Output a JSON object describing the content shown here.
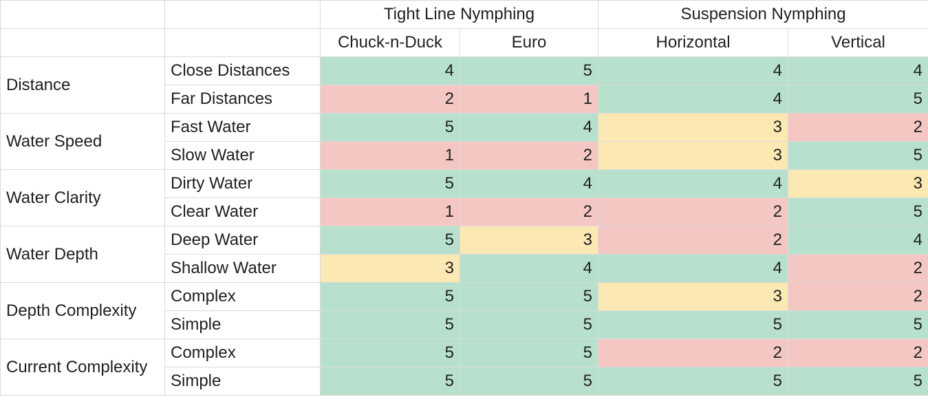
{
  "header": {
    "groups": [
      {
        "label": "Tight Line Nymphing",
        "span": 2
      },
      {
        "label": "Suspension Nymphing",
        "span": 2
      }
    ],
    "methods": [
      "Chuck-n-Duck",
      "Euro",
      "Horizontal",
      "Vertical"
    ]
  },
  "colors": {
    "high": "#b7e1cd",
    "mid": "#fce8b2",
    "low": "#f4c7c3",
    "grid": "#dadada"
  },
  "rows": [
    {
      "group": "Distance",
      "metric": "Close Distances",
      "values": [
        4,
        5,
        4,
        4
      ],
      "shades": [
        "g",
        "g",
        "g",
        "g"
      ]
    },
    {
      "group": "Distance",
      "metric": "Far Distances",
      "values": [
        2,
        1,
        4,
        5
      ],
      "shades": [
        "r",
        "r",
        "g",
        "g"
      ]
    },
    {
      "group": "Water Speed",
      "metric": "Fast Water",
      "values": [
        5,
        4,
        3,
        2
      ],
      "shades": [
        "g",
        "g",
        "y",
        "r"
      ]
    },
    {
      "group": "Water Speed",
      "metric": "Slow Water",
      "values": [
        1,
        2,
        3,
        5
      ],
      "shades": [
        "r",
        "r",
        "y",
        "g"
      ]
    },
    {
      "group": "Water Clarity",
      "metric": "Dirty Water",
      "values": [
        5,
        4,
        4,
        3
      ],
      "shades": [
        "g",
        "g",
        "g",
        "y"
      ]
    },
    {
      "group": "Water Clarity",
      "metric": "Clear Water",
      "values": [
        1,
        2,
        2,
        5
      ],
      "shades": [
        "r",
        "r",
        "r",
        "g"
      ]
    },
    {
      "group": "Water Depth",
      "metric": "Deep Water",
      "values": [
        5,
        3,
        2,
        4
      ],
      "shades": [
        "g",
        "y",
        "r",
        "g"
      ]
    },
    {
      "group": "Water Depth",
      "metric": "Shallow Water",
      "values": [
        3,
        4,
        4,
        2
      ],
      "shades": [
        "y",
        "g",
        "g",
        "r"
      ]
    },
    {
      "group": "Depth Complexity",
      "metric": "Complex",
      "values": [
        5,
        5,
        3,
        2
      ],
      "shades": [
        "g",
        "g",
        "y",
        "r"
      ]
    },
    {
      "group": "Depth Complexity",
      "metric": "Simple",
      "values": [
        5,
        5,
        5,
        5
      ],
      "shades": [
        "g",
        "g",
        "g",
        "g"
      ]
    },
    {
      "group": "Current Complexity",
      "metric": "Complex",
      "values": [
        5,
        5,
        2,
        2
      ],
      "shades": [
        "g",
        "g",
        "r",
        "r"
      ]
    },
    {
      "group": "Current Complexity",
      "metric": "Simple",
      "values": [
        5,
        5,
        5,
        5
      ],
      "shades": [
        "g",
        "g",
        "g",
        "g"
      ]
    }
  ]
}
